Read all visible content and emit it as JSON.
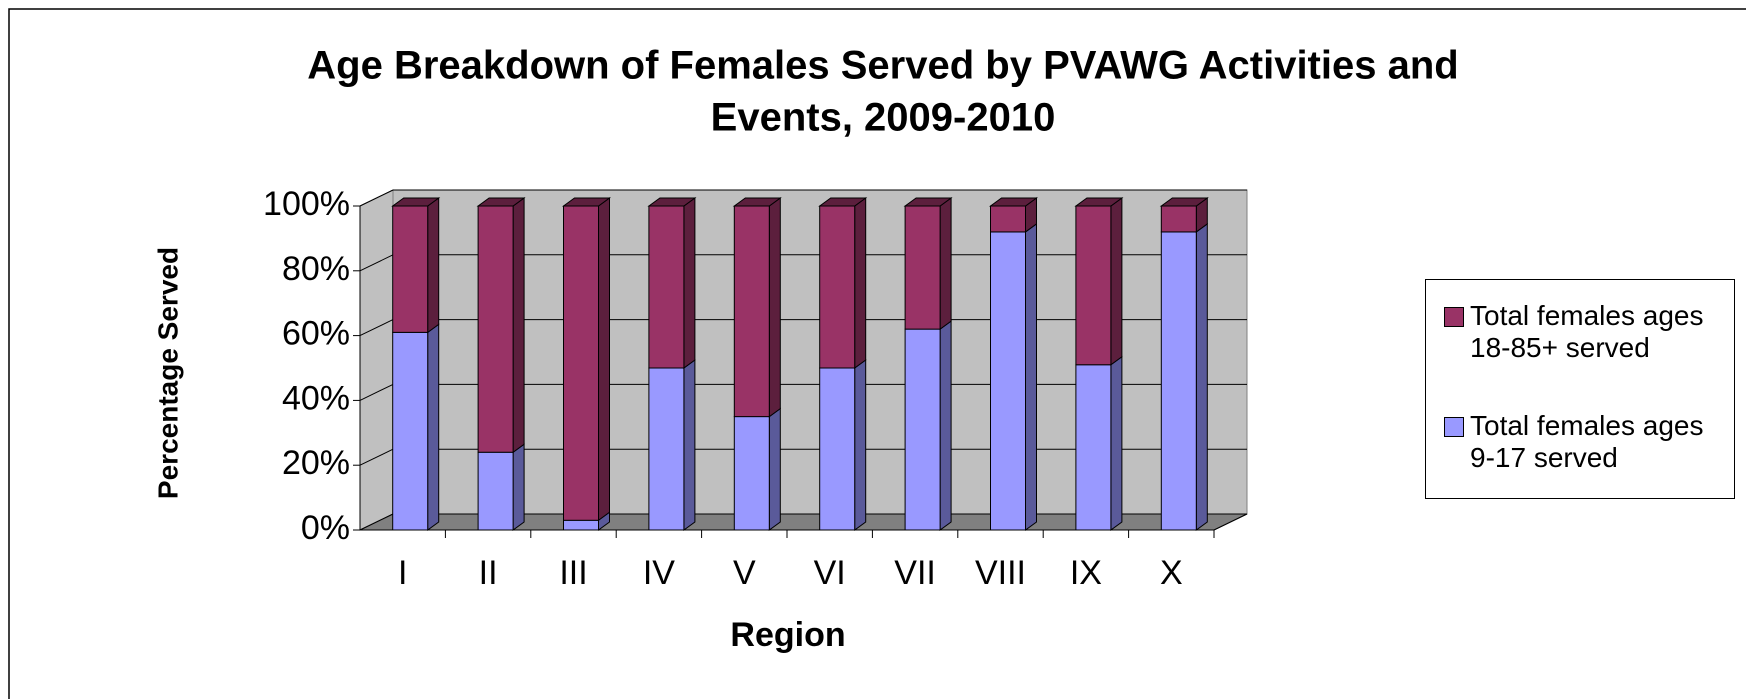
{
  "chart_data": {
    "type": "stacked-bar-3d",
    "title": "Age Breakdown of Females Served by PVAWG Activities and",
    "title_line2": "Events, 2009-2010",
    "x_label": "Region",
    "y_label": "Percentage Served",
    "categories": [
      "I",
      "II",
      "III",
      "IV",
      "V",
      "VI",
      "VII",
      "VIII",
      "IX",
      "X"
    ],
    "series": [
      {
        "name": "Total females ages 9-17 served",
        "color": "#9999ff",
        "side_color": "#5a5a9a",
        "values": [
          61,
          24,
          3,
          50,
          35,
          50,
          62,
          92,
          51,
          92
        ]
      },
      {
        "name": "Total females ages 18-85+ served",
        "color": "#993366",
        "side_color": "#5c1f3d",
        "values": [
          39,
          76,
          97,
          50,
          65,
          50,
          38,
          8,
          49,
          8
        ]
      }
    ],
    "ylim": [
      0,
      100
    ],
    "yticks": [
      {
        "value": 0,
        "label": "0%"
      },
      {
        "value": 20,
        "label": "20%"
      },
      {
        "value": 40,
        "label": "40%"
      },
      {
        "value": 60,
        "label": "60%"
      },
      {
        "value": 80,
        "label": "80%"
      },
      {
        "value": 100,
        "label": "100%"
      }
    ],
    "grid": true,
    "legend": "right"
  }
}
